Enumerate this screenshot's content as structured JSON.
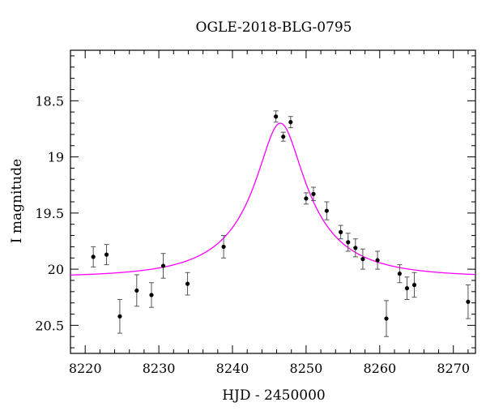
{
  "chart_data": {
    "type": "scatter",
    "title": "OGLE-2018-BLG-0795",
    "xlabel": "HJD - 2450000",
    "ylabel": "I magnitude",
    "xlim": [
      8218,
      8273
    ],
    "ylim": [
      20.75,
      18.05
    ],
    "y_inverted": true,
    "x_ticks": [
      8220,
      8230,
      8240,
      8250,
      8260,
      8270
    ],
    "y_ticks": [
      18.5,
      19,
      19.5,
      20,
      20.5
    ],
    "x_tick_labels": [
      "8220",
      "8230",
      "8240",
      "8250",
      "8260",
      "8270"
    ],
    "y_tick_labels": [
      "18.5",
      "19",
      "19.5",
      "20",
      "20.5"
    ],
    "grid": false,
    "legend": false,
    "model_color": "#ff00ff",
    "point_color": "#000000",
    "model": {
      "t0": 8246.5,
      "u0": 0.28,
      "tE": 12.0,
      "baseline_mag": 20.07,
      "peak_mag": 18.7
    },
    "points": [
      {
        "x": 8221.1,
        "y": 19.89,
        "err": 0.09
      },
      {
        "x": 8222.9,
        "y": 19.87,
        "err": 0.09
      },
      {
        "x": 8224.7,
        "y": 20.42,
        "err": 0.15
      },
      {
        "x": 8227.0,
        "y": 20.19,
        "err": 0.14
      },
      {
        "x": 8229.0,
        "y": 20.23,
        "err": 0.11
      },
      {
        "x": 8230.6,
        "y": 19.97,
        "err": 0.11
      },
      {
        "x": 8233.9,
        "y": 20.13,
        "err": 0.1
      },
      {
        "x": 8238.8,
        "y": 19.8,
        "err": 0.1
      },
      {
        "x": 8245.9,
        "y": 18.64,
        "err": 0.05
      },
      {
        "x": 8246.9,
        "y": 18.82,
        "err": 0.04
      },
      {
        "x": 8247.9,
        "y": 18.69,
        "err": 0.05
      },
      {
        "x": 8250.0,
        "y": 19.37,
        "err": 0.05
      },
      {
        "x": 8251.0,
        "y": 19.33,
        "err": 0.06
      },
      {
        "x": 8252.8,
        "y": 19.48,
        "err": 0.08
      },
      {
        "x": 8254.7,
        "y": 19.67,
        "err": 0.06
      },
      {
        "x": 8255.7,
        "y": 19.76,
        "err": 0.08
      },
      {
        "x": 8256.7,
        "y": 19.81,
        "err": 0.08
      },
      {
        "x": 8257.7,
        "y": 19.91,
        "err": 0.09
      },
      {
        "x": 8259.7,
        "y": 19.92,
        "err": 0.08
      },
      {
        "x": 8260.9,
        "y": 20.44,
        "err": 0.16
      },
      {
        "x": 8262.7,
        "y": 20.04,
        "err": 0.08
      },
      {
        "x": 8263.7,
        "y": 20.17,
        "err": 0.1
      },
      {
        "x": 8264.7,
        "y": 20.14,
        "err": 0.11
      },
      {
        "x": 8272.0,
        "y": 20.29,
        "err": 0.15
      }
    ]
  }
}
